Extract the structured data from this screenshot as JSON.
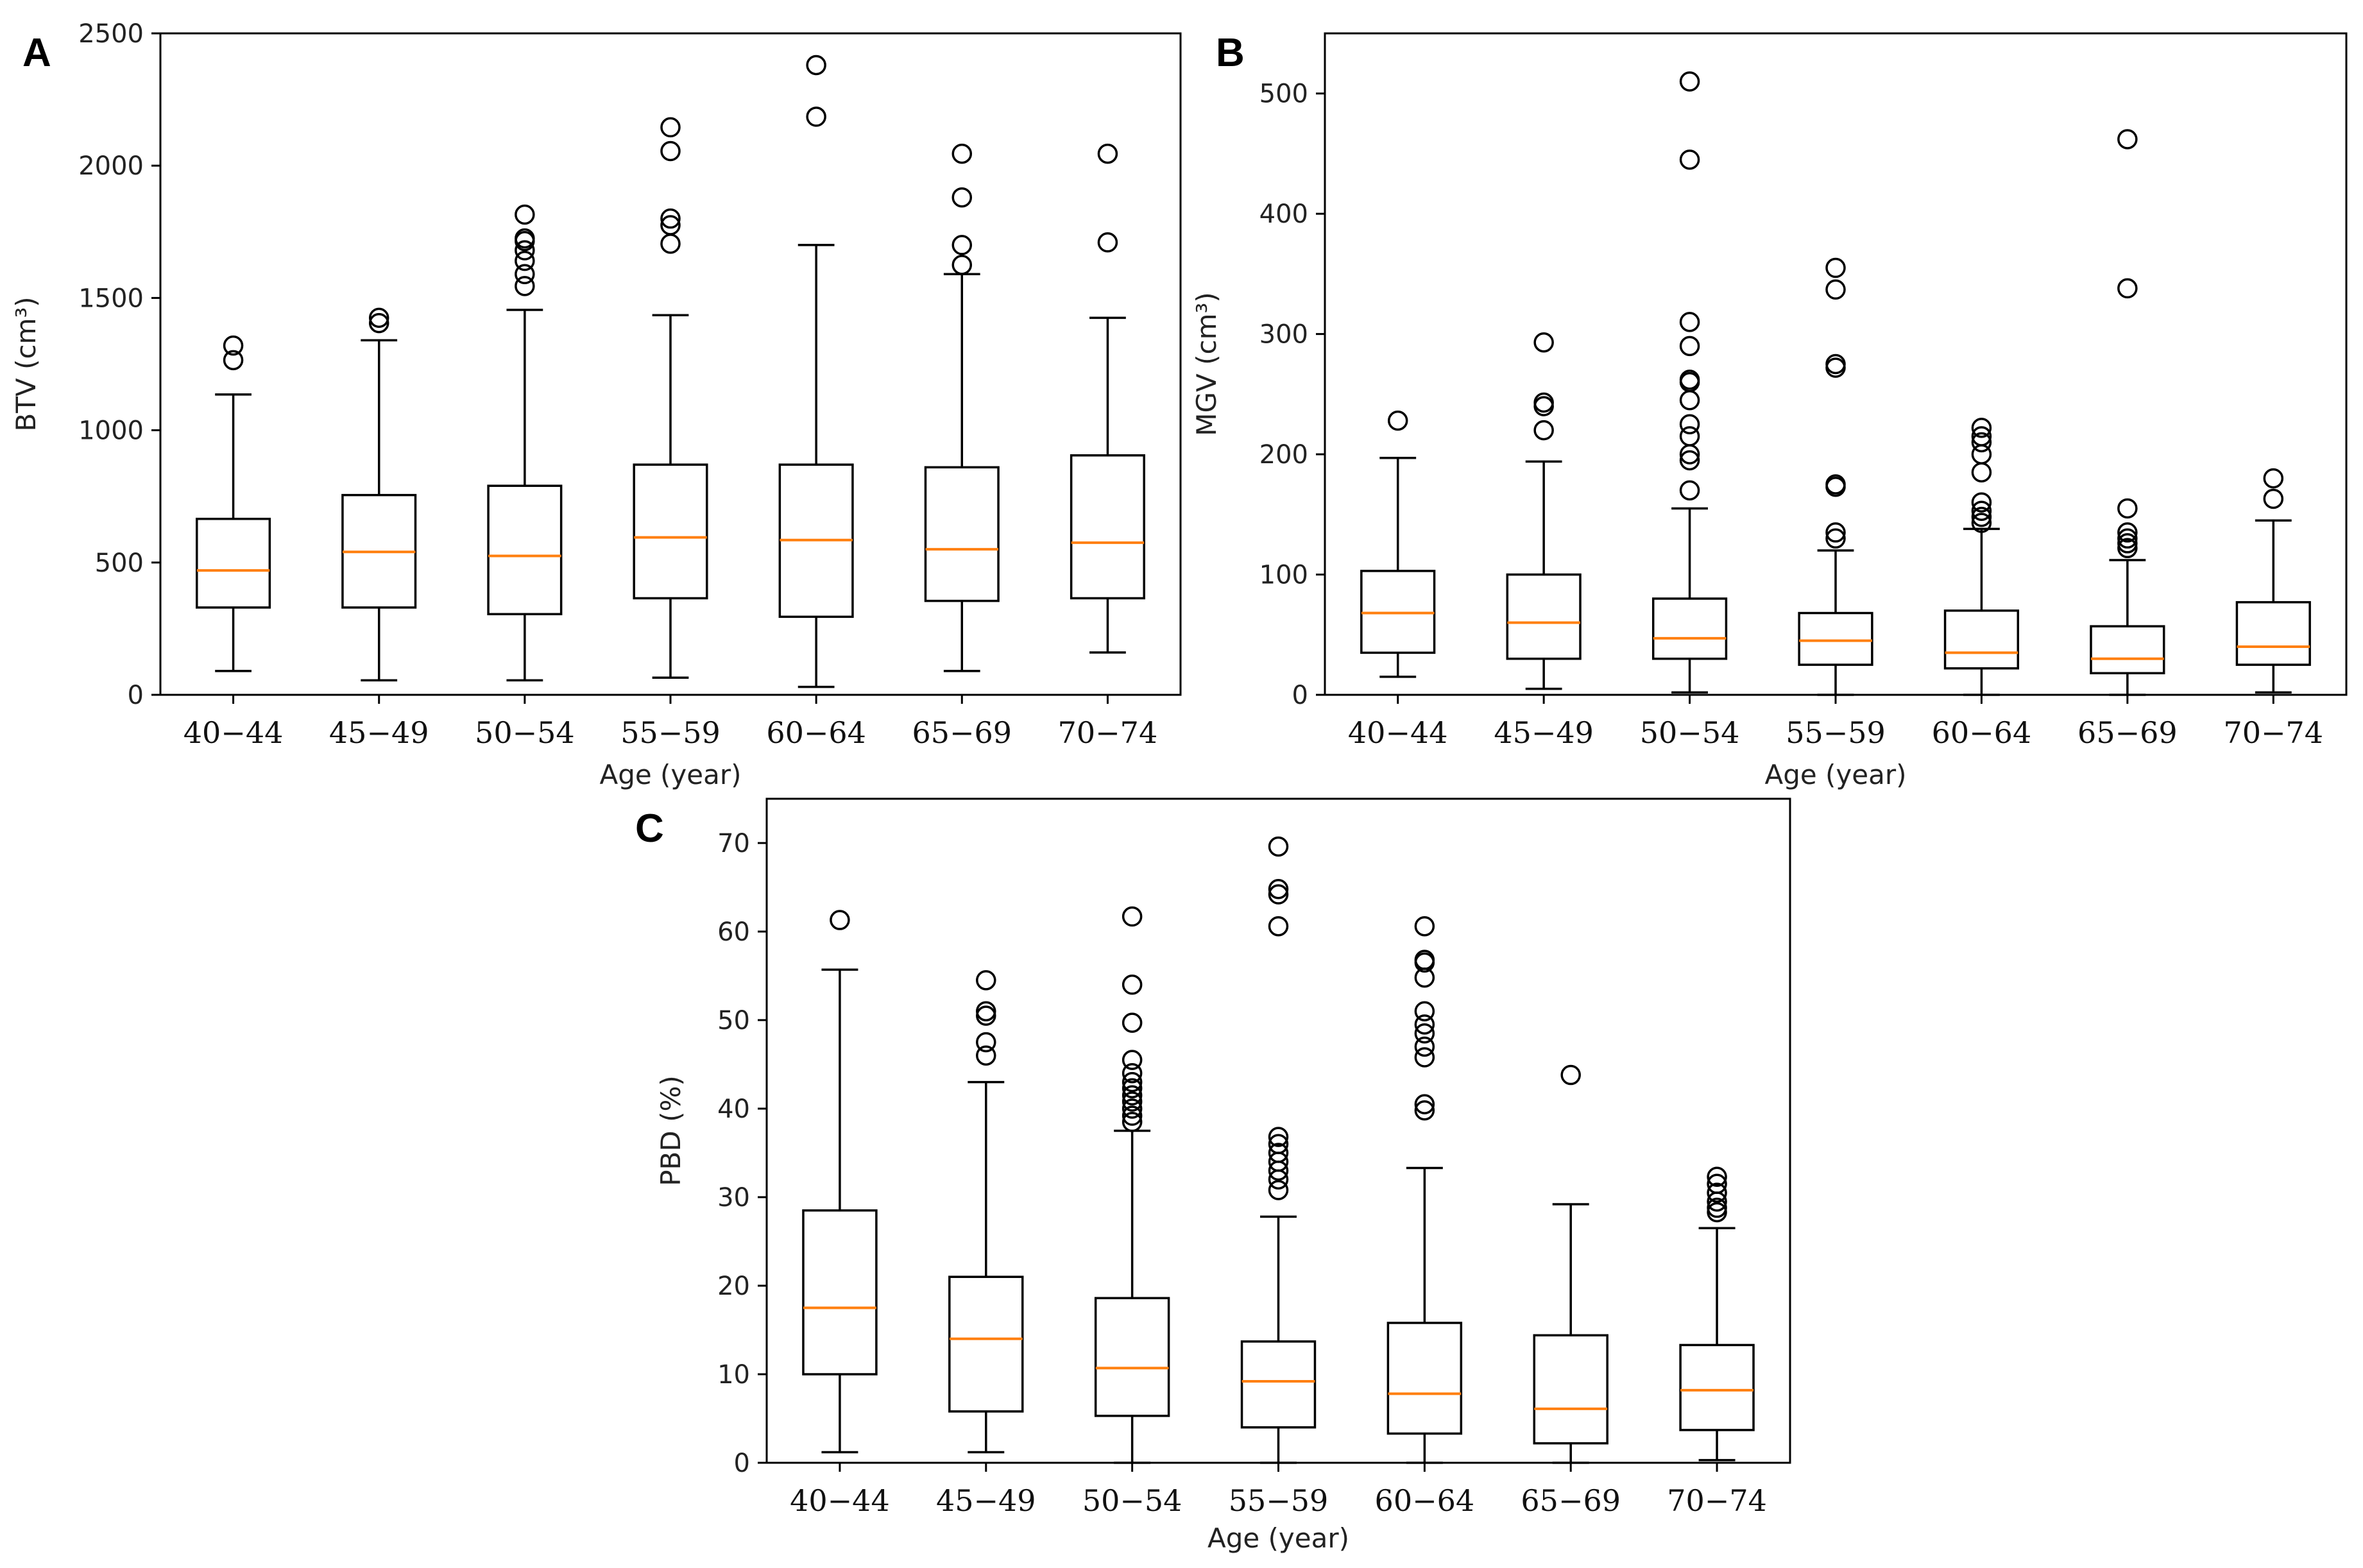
{
  "chart_data": [
    {
      "panel": "A",
      "type": "box",
      "title": "",
      "xlabel": "Age (year)",
      "ylabel": "BTV (cm³)",
      "ylim": [
        0,
        2500
      ],
      "yticks": [
        0,
        500,
        1000,
        1500,
        2000,
        2500
      ],
      "categories": [
        "40−44",
        "45−49",
        "50−54",
        "55−59",
        "60−64",
        "65−69",
        "70−74"
      ],
      "boxes": [
        {
          "whislo": 90,
          "q1": 330,
          "median": 470,
          "q3": 665,
          "whishi": 1135,
          "fliers": [
            1265,
            1320
          ]
        },
        {
          "whislo": 55,
          "q1": 330,
          "median": 540,
          "q3": 755,
          "whishi": 1340,
          "fliers": [
            1405,
            1425
          ]
        },
        {
          "whislo": 55,
          "q1": 305,
          "median": 525,
          "q3": 790,
          "whishi": 1455,
          "fliers": [
            1545,
            1590,
            1640,
            1680,
            1715,
            1725,
            1815
          ]
        },
        {
          "whislo": 65,
          "q1": 365,
          "median": 595,
          "q3": 870,
          "whishi": 1435,
          "fliers": [
            1705,
            1775,
            1800,
            2055,
            2145
          ]
        },
        {
          "whislo": 30,
          "q1": 295,
          "median": 585,
          "q3": 870,
          "whishi": 1700,
          "fliers": [
            2185,
            2380
          ]
        },
        {
          "whislo": 90,
          "q1": 355,
          "median": 550,
          "q3": 860,
          "whishi": 1590,
          "fliers": [
            1625,
            1700,
            1880,
            2045
          ]
        },
        {
          "whislo": 160,
          "q1": 365,
          "median": 575,
          "q3": 905,
          "whishi": 1425,
          "fliers": [
            1710,
            2045
          ]
        }
      ]
    },
    {
      "panel": "B",
      "type": "box",
      "title": "",
      "xlabel": "Age (year)",
      "ylabel": "MGV (cm³)",
      "ylim": [
        0,
        550
      ],
      "yticks": [
        0,
        100,
        200,
        300,
        400,
        500
      ],
      "categories": [
        "40−44",
        "45−49",
        "50−54",
        "55−59",
        "60−64",
        "65−69",
        "70−74"
      ],
      "boxes": [
        {
          "whislo": 15,
          "q1": 35,
          "median": 68,
          "q3": 103,
          "whishi": 197,
          "fliers": [
            228
          ]
        },
        {
          "whislo": 5,
          "q1": 30,
          "median": 60,
          "q3": 100,
          "whishi": 194,
          "fliers": [
            220,
            240,
            243,
            293
          ]
        },
        {
          "whislo": 2,
          "q1": 30,
          "median": 47,
          "q3": 80,
          "whishi": 155,
          "fliers": [
            170,
            195,
            200,
            215,
            225,
            245,
            260,
            262,
            290,
            310,
            445,
            510
          ]
        },
        {
          "whislo": 0,
          "q1": 25,
          "median": 45,
          "q3": 68,
          "whishi": 120,
          "fliers": [
            130,
            135,
            173,
            175,
            272,
            275,
            337,
            355
          ]
        },
        {
          "whislo": 0,
          "q1": 22,
          "median": 35,
          "q3": 70,
          "whishi": 138,
          "fliers": [
            143,
            148,
            153,
            160,
            185,
            200,
            210,
            215,
            222
          ]
        },
        {
          "whislo": 0,
          "q1": 18,
          "median": 30,
          "q3": 57,
          "whishi": 112,
          "fliers": [
            122,
            126,
            130,
            135,
            155,
            338,
            462
          ]
        },
        {
          "whislo": 2,
          "q1": 25,
          "median": 40,
          "q3": 77,
          "whishi": 145,
          "fliers": [
            163,
            180
          ]
        }
      ]
    },
    {
      "panel": "C",
      "type": "box",
      "title": "",
      "xlabel": "Age (year)",
      "ylabel": "PBD (%)",
      "ylim": [
        0,
        75
      ],
      "yticks": [
        0,
        10,
        20,
        30,
        40,
        50,
        60,
        70
      ],
      "categories": [
        "40−44",
        "45−49",
        "50−54",
        "55−59",
        "60−64",
        "65−69",
        "70−74"
      ],
      "boxes": [
        {
          "whislo": 1.2,
          "q1": 10.0,
          "median": 17.5,
          "q3": 28.5,
          "whishi": 55.7,
          "fliers": [
            61.3
          ]
        },
        {
          "whislo": 1.2,
          "q1": 5.8,
          "median": 14.0,
          "q3": 21.0,
          "whishi": 43.0,
          "fliers": [
            46.0,
            47.5,
            50.5,
            51.0,
            54.5
          ]
        },
        {
          "whislo": 0.0,
          "q1": 5.3,
          "median": 10.7,
          "q3": 18.6,
          "whishi": 37.5,
          "fliers": [
            38.5,
            39.2,
            40.0,
            40.8,
            41.5,
            42.3,
            43.0,
            44.0,
            45.5,
            49.7,
            54.0,
            61.7
          ]
        },
        {
          "whislo": 0.0,
          "q1": 4.0,
          "median": 9.2,
          "q3": 13.7,
          "whishi": 27.8,
          "fliers": [
            30.8,
            32.0,
            33.0,
            34.0,
            35.0,
            36.0,
            36.8,
            60.6,
            64.2,
            64.8,
            69.6
          ]
        },
        {
          "whislo": 0.0,
          "q1": 3.3,
          "median": 7.8,
          "q3": 15.8,
          "whishi": 33.3,
          "fliers": [
            39.8,
            40.5,
            45.8,
            47.0,
            48.5,
            49.5,
            51.0,
            54.8,
            56.5,
            56.8,
            60.6
          ]
        },
        {
          "whislo": 0.0,
          "q1": 2.2,
          "median": 6.1,
          "q3": 14.4,
          "whishi": 29.2,
          "fliers": [
            43.8
          ]
        },
        {
          "whislo": 0.3,
          "q1": 3.7,
          "median": 8.2,
          "q3": 13.3,
          "whishi": 26.5,
          "fliers": [
            28.3,
            28.8,
            29.5,
            30.5,
            31.5,
            32.3
          ]
        }
      ]
    }
  ]
}
